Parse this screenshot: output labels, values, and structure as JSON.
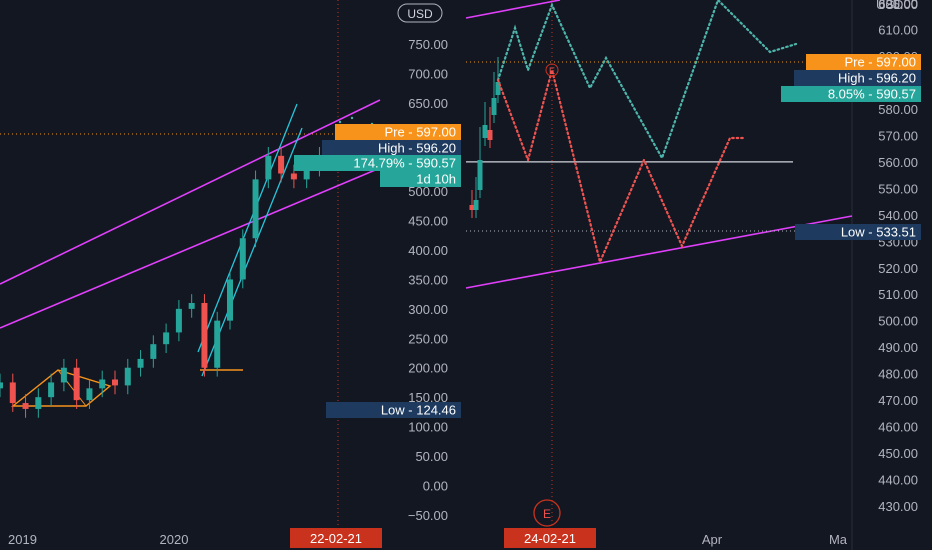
{
  "chart_data": [
    {
      "type": "candlestick",
      "panel": "left",
      "currency_button": "USD",
      "y_axis": {
        "ticks": [
          "750.00",
          "700.00",
          "650.00",
          "600.00",
          "550.00",
          "500.00",
          "450.00",
          "400.00",
          "350.00",
          "300.00",
          "250.00",
          "200.00",
          "150.00",
          "100.00",
          "50.00",
          "0.00",
          "−50.00"
        ],
        "range": [
          -65,
          805
        ]
      },
      "x_axis": {
        "ticks": [
          "2019",
          "2020"
        ],
        "current_date_label": "22-02-21"
      },
      "badges": {
        "pre": {
          "label": "Pre",
          "value": "597.00",
          "color": "#f7931a"
        },
        "high": {
          "label": "High",
          "value": "596.20",
          "color": "#1e3a5f"
        },
        "change": {
          "label": "174.79%",
          "value": "590.57",
          "color": "#26a69a"
        },
        "countdown": {
          "label": "1d 10h",
          "color": "#26a69a"
        },
        "low": {
          "label": "Low",
          "value": "124.46",
          "color": "#1e3a5f"
        }
      },
      "close_series": [
        [
          "2018-11",
          175
        ],
        [
          "2018-12",
          140
        ],
        [
          "2019-01",
          130
        ],
        [
          "2019-02",
          150
        ],
        [
          "2019-03",
          175
        ],
        [
          "2019-04",
          200
        ],
        [
          "2019-05",
          145
        ],
        [
          "2019-06",
          165
        ],
        [
          "2019-07",
          180
        ],
        [
          "2019-08",
          170
        ],
        [
          "2019-09",
          200
        ],
        [
          "2019-10",
          215
        ],
        [
          "2019-11",
          240
        ],
        [
          "2019-12",
          260
        ],
        [
          "2020-01",
          300
        ],
        [
          "2020-02",
          310
        ],
        [
          "2020-03",
          200
        ],
        [
          "2020-04",
          280
        ],
        [
          "2020-05",
          350
        ],
        [
          "2020-06",
          420
        ],
        [
          "2020-07",
          520
        ],
        [
          "2020-08",
          560
        ],
        [
          "2020-09",
          530
        ],
        [
          "2020-10",
          520
        ],
        [
          "2020-11",
          540
        ],
        [
          "2020-12",
          560
        ],
        [
          "2021-01",
          550
        ],
        [
          "2021-02",
          590.57
        ]
      ]
    },
    {
      "type": "candlestick",
      "panel": "right",
      "y_axis": {
        "ticks": [
          "620.00",
          "610.00",
          "600.00",
          "590.00",
          "580.00",
          "570.00",
          "560.00",
          "550.00",
          "540.00",
          "530.00",
          "520.00",
          "510.00",
          "500.00",
          "490.00",
          "480.00",
          "470.00",
          "460.00",
          "450.00",
          "440.00",
          "430.00"
        ],
        "range": [
          425,
          630
        ],
        "partial_labels": [
          "USD",
          "605.00"
        ]
      },
      "x_axis": {
        "ticks": [
          "Apr",
          "Ma"
        ],
        "current_date_label": "24-02-21"
      },
      "event_marker": "E",
      "badges": {
        "pre": {
          "label": "Pre",
          "value": "597.00",
          "color": "#f7931a"
        },
        "high": {
          "label": "High",
          "value": "596.20",
          "color": "#1e3a5f"
        },
        "change": {
          "label": "8.05%",
          "value": "590.57",
          "color": "#26a69a"
        },
        "low": {
          "label": "Low",
          "value": "533.51",
          "color": "#1e3a5f"
        }
      },
      "horizontal_level": 560,
      "bull_path": [
        [
          "2021-02-22",
          590
        ],
        [
          "2021-03-01",
          610
        ],
        [
          "2021-03-07",
          590
        ],
        [
          "2021-03-15",
          618
        ],
        [
          "2021-03-22",
          585
        ],
        [
          "2021-03-28",
          600
        ],
        [
          "2021-04-08",
          565
        ],
        [
          "2021-04-25",
          630
        ],
        [
          "2021-05-10",
          600
        ]
      ],
      "bear_path": [
        [
          "2021-02-22",
          590
        ],
        [
          "2021-03-01",
          560
        ],
        [
          "2021-03-07",
          595
        ],
        [
          "2021-03-15",
          522
        ],
        [
          "2021-03-22",
          560
        ],
        [
          "2021-03-30",
          525
        ],
        [
          "2021-04-12",
          566
        ],
        [
          "2021-04-16",
          568
        ]
      ]
    }
  ]
}
